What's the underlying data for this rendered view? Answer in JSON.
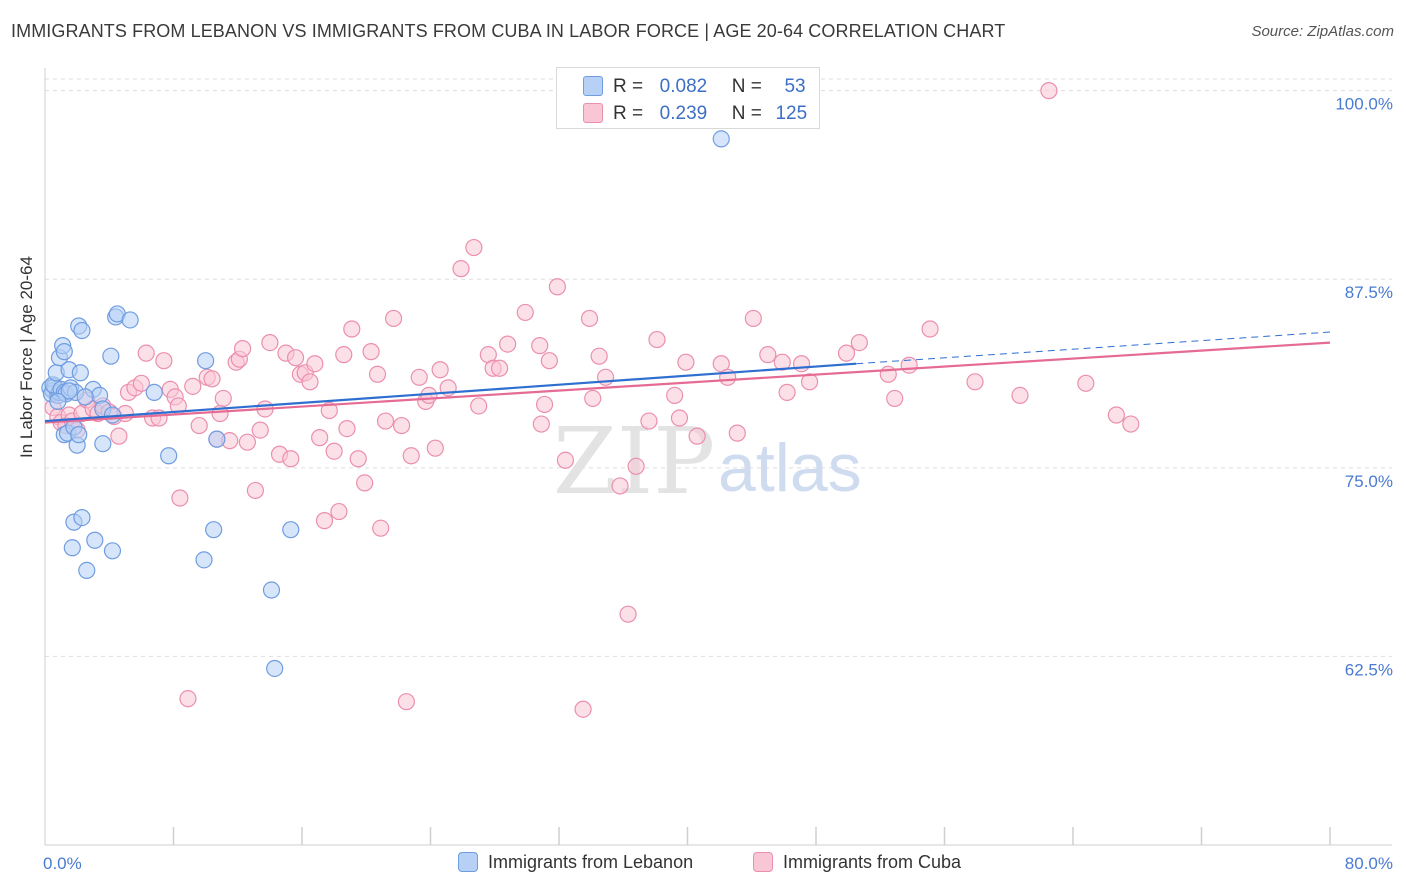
{
  "header": {
    "title": "IMMIGRANTS FROM LEBANON VS IMMIGRANTS FROM CUBA IN LABOR FORCE | AGE 20-64 CORRELATION CHART",
    "source": "Source: ZipAtlas.com"
  },
  "watermark": {
    "zip": "ZIP",
    "atlas": "atlas"
  },
  "colors": {
    "lebanon_fill": "#b7d0f5",
    "lebanon_stroke": "#6f9de0",
    "lebanon_line": "#2e6fd0",
    "cuba_fill": "#f9c6d6",
    "cuba_stroke": "#eb8fae",
    "cuba_line": "#e56a94",
    "tick_label": "#4a7bd0"
  },
  "legend": {
    "rows": [
      {
        "r_label": "R =",
        "r_value": "0.082",
        "n_label": "N =",
        "n_value": "53"
      },
      {
        "r_label": "R =",
        "r_value": "0.239",
        "n_label": "N =",
        "n_value": "125"
      }
    ],
    "bottom": {
      "lebanon": "Immigrants from Lebanon",
      "cuba": "Immigrants from Cuba"
    }
  },
  "chart_data": {
    "type": "scatter",
    "title": "IMMIGRANTS FROM LEBANON VS IMMIGRANTS FROM CUBA IN LABOR FORCE | AGE 20-64 CORRELATION CHART",
    "xlabel": "",
    "ylabel": "In Labor Force | Age 20-64",
    "xlim": [
      0,
      80
    ],
    "ylim": [
      50,
      101.5
    ],
    "x_tick_labels": [
      {
        "value": 0,
        "label": "0.0%"
      },
      {
        "value": 80,
        "label": "80.0%"
      }
    ],
    "y_ticks": [
      {
        "value": 100,
        "label": "100.0%"
      },
      {
        "value": 87.5,
        "label": "87.5%"
      },
      {
        "value": 75,
        "label": "75.0%"
      },
      {
        "value": 62.5,
        "label": "62.5%"
      }
    ],
    "grid": true,
    "legend_position": "top-center",
    "series": [
      {
        "name": "Immigrants from Lebanon",
        "R": 0.082,
        "N": 53,
        "trend": {
          "x": [
            0,
            50.5
          ],
          "y": [
            78.1,
            81.9
          ]
        },
        "trend_dashed": {
          "x": [
            50.5,
            80
          ],
          "y": [
            81.9,
            84.0
          ]
        },
        "points": [
          [
            0.3,
            80.3
          ],
          [
            0.5,
            80.1
          ],
          [
            0.4,
            79.9
          ],
          [
            0.6,
            80.4
          ],
          [
            0.8,
            79.8
          ],
          [
            0.9,
            80.0
          ],
          [
            0.5,
            80.5
          ],
          [
            1.0,
            80.2
          ],
          [
            1.2,
            80.0
          ],
          [
            1.3,
            79.9
          ],
          [
            0.7,
            81.3
          ],
          [
            0.9,
            82.3
          ],
          [
            1.1,
            83.1
          ],
          [
            1.2,
            82.7
          ],
          [
            1.5,
            81.5
          ],
          [
            1.6,
            80.3
          ],
          [
            1.9,
            80.0
          ],
          [
            2.2,
            81.3
          ],
          [
            2.1,
            84.4
          ],
          [
            2.3,
            84.1
          ],
          [
            3.0,
            80.2
          ],
          [
            3.4,
            79.8
          ],
          [
            3.6,
            78.9
          ],
          [
            4.1,
            82.4
          ],
          [
            4.2,
            78.5
          ],
          [
            4.4,
            85.0
          ],
          [
            4.5,
            85.2
          ],
          [
            5.3,
            84.8
          ],
          [
            6.8,
            80.0
          ],
          [
            7.7,
            75.8
          ],
          [
            1.2,
            77.2
          ],
          [
            1.4,
            77.3
          ],
          [
            1.8,
            77.7
          ],
          [
            2.0,
            76.5
          ],
          [
            2.1,
            77.2
          ],
          [
            3.6,
            76.6
          ],
          [
            1.8,
            71.4
          ],
          [
            2.3,
            71.7
          ],
          [
            1.7,
            69.7
          ],
          [
            3.1,
            70.2
          ],
          [
            4.2,
            69.5
          ],
          [
            2.6,
            68.2
          ],
          [
            10.0,
            82.1
          ],
          [
            10.7,
            76.9
          ],
          [
            10.5,
            70.9
          ],
          [
            9.9,
            68.9
          ],
          [
            15.3,
            70.9
          ],
          [
            14.1,
            66.9
          ],
          [
            14.3,
            61.7
          ],
          [
            42.1,
            96.8
          ],
          [
            1.5,
            80.1
          ],
          [
            0.8,
            79.4
          ],
          [
            2.5,
            79.7
          ]
        ]
      },
      {
        "name": "Immigrants from Cuba",
        "R": 0.239,
        "N": 125,
        "trend": {
          "x": [
            0,
            80
          ],
          "y": [
            78.0,
            83.3
          ]
        },
        "points": [
          [
            0.5,
            79.0
          ],
          [
            0.8,
            78.4
          ],
          [
            1.0,
            78.0
          ],
          [
            1.3,
            77.8
          ],
          [
            1.5,
            78.5
          ],
          [
            1.7,
            78.1
          ],
          [
            2.0,
            77.5
          ],
          [
            2.3,
            78.6
          ],
          [
            2.6,
            79.5
          ],
          [
            3.0,
            78.9
          ],
          [
            3.3,
            78.6
          ],
          [
            3.6,
            79.1
          ],
          [
            4.0,
            78.7
          ],
          [
            4.3,
            78.4
          ],
          [
            4.6,
            77.1
          ],
          [
            5.0,
            78.6
          ],
          [
            5.2,
            80.0
          ],
          [
            5.6,
            80.3
          ],
          [
            6.0,
            80.6
          ],
          [
            6.3,
            82.6
          ],
          [
            6.7,
            78.3
          ],
          [
            7.1,
            78.3
          ],
          [
            7.4,
            82.1
          ],
          [
            7.8,
            80.2
          ],
          [
            8.1,
            79.7
          ],
          [
            8.3,
            79.1
          ],
          [
            8.4,
            73.0
          ],
          [
            8.9,
            59.7
          ],
          [
            9.2,
            80.4
          ],
          [
            9.6,
            77.8
          ],
          [
            10.1,
            81.0
          ],
          [
            10.4,
            80.9
          ],
          [
            10.7,
            76.9
          ],
          [
            10.9,
            78.6
          ],
          [
            11.1,
            79.6
          ],
          [
            11.5,
            76.8
          ],
          [
            11.9,
            82.0
          ],
          [
            12.1,
            82.2
          ],
          [
            12.3,
            82.9
          ],
          [
            12.6,
            76.7
          ],
          [
            13.1,
            73.5
          ],
          [
            13.4,
            77.5
          ],
          [
            13.7,
            78.9
          ],
          [
            14.0,
            83.3
          ],
          [
            14.6,
            75.9
          ],
          [
            15.0,
            82.6
          ],
          [
            15.3,
            75.6
          ],
          [
            15.6,
            82.3
          ],
          [
            15.9,
            81.2
          ],
          [
            16.2,
            81.3
          ],
          [
            16.5,
            80.7
          ],
          [
            16.8,
            81.9
          ],
          [
            17.1,
            77.0
          ],
          [
            17.4,
            71.5
          ],
          [
            17.7,
            78.8
          ],
          [
            18.0,
            76.1
          ],
          [
            18.3,
            72.1
          ],
          [
            18.6,
            82.5
          ],
          [
            18.8,
            77.6
          ],
          [
            19.1,
            84.2
          ],
          [
            19.5,
            75.6
          ],
          [
            19.9,
            74.0
          ],
          [
            20.3,
            82.7
          ],
          [
            20.7,
            81.2
          ],
          [
            20.9,
            71.0
          ],
          [
            21.2,
            78.1
          ],
          [
            21.7,
            84.9
          ],
          [
            22.2,
            77.8
          ],
          [
            22.8,
            75.8
          ],
          [
            23.3,
            81.0
          ],
          [
            23.7,
            79.4
          ],
          [
            23.9,
            79.8
          ],
          [
            24.3,
            76.3
          ],
          [
            24.6,
            81.5
          ],
          [
            25.1,
            80.3
          ],
          [
            25.9,
            88.2
          ],
          [
            26.7,
            89.6
          ],
          [
            27.6,
            82.5
          ],
          [
            27.9,
            81.6
          ],
          [
            28.3,
            81.6
          ],
          [
            28.8,
            83.2
          ],
          [
            29.9,
            85.3
          ],
          [
            30.8,
            83.1
          ],
          [
            30.9,
            77.9
          ],
          [
            31.1,
            79.2
          ],
          [
            31.4,
            82.1
          ],
          [
            31.9,
            87.0
          ],
          [
            32.4,
            75.5
          ],
          [
            33.9,
            84.9
          ],
          [
            34.1,
            79.6
          ],
          [
            34.5,
            82.4
          ],
          [
            34.9,
            81.0
          ],
          [
            35.8,
            73.8
          ],
          [
            36.3,
            65.3
          ],
          [
            36.8,
            75.1
          ],
          [
            37.6,
            78.1
          ],
          [
            38.1,
            83.5
          ],
          [
            39.2,
            79.8
          ],
          [
            39.5,
            78.3
          ],
          [
            39.9,
            82.0
          ],
          [
            40.6,
            77.1
          ],
          [
            42.1,
            81.9
          ],
          [
            42.5,
            81.0
          ],
          [
            43.1,
            77.3
          ],
          [
            44.1,
            84.9
          ],
          [
            45.0,
            82.5
          ],
          [
            45.9,
            82.0
          ],
          [
            46.2,
            80.0
          ],
          [
            47.1,
            81.9
          ],
          [
            47.6,
            80.7
          ],
          [
            49.9,
            82.6
          ],
          [
            50.7,
            83.3
          ],
          [
            52.5,
            81.2
          ],
          [
            52.9,
            79.6
          ],
          [
            53.8,
            81.8
          ],
          [
            55.1,
            84.2
          ],
          [
            57.9,
            80.7
          ],
          [
            60.7,
            79.8
          ],
          [
            62.5,
            100.0
          ],
          [
            64.8,
            80.6
          ],
          [
            66.7,
            78.5
          ],
          [
            67.6,
            77.9
          ],
          [
            33.5,
            59.0
          ],
          [
            27.0,
            79.1
          ],
          [
            22.5,
            59.5
          ]
        ]
      }
    ]
  }
}
